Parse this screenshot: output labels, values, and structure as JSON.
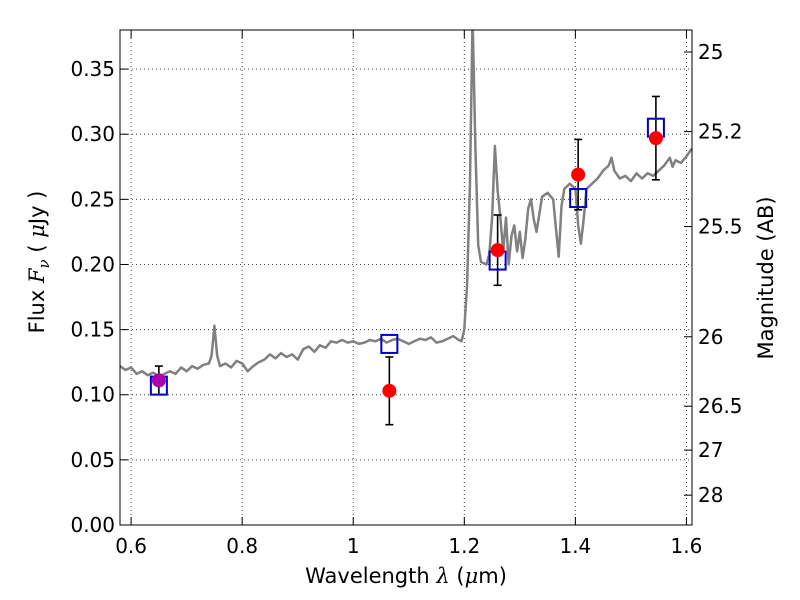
{
  "chart_data": {
    "type": "scatter",
    "title": "",
    "xlabel": "Wavelength",
    "xlabel_symbol": "λ",
    "xlabel_unit_prefix": "(",
    "xlabel_unit_mu": "μ",
    "xlabel_unit_rest": "m)",
    "ylabel": "Flux",
    "ylabel_symbol": "F",
    "ylabel_subscript": "ν",
    "ylabel_unit_prefix": "(",
    "ylabel_unit_mu": "μ",
    "ylabel_unit_rest": "Jy )",
    "y2label": "Magnitude (AB)",
    "xlim": [
      0.58,
      1.61
    ],
    "ylim": [
      0.0,
      0.38
    ],
    "grid": true,
    "x_ticks": [
      {
        "value": 0.6,
        "label": "0.6"
      },
      {
        "value": 0.8,
        "label": "0.8"
      },
      {
        "value": 1.0,
        "label": "1"
      },
      {
        "value": 1.2,
        "label": "1.2"
      },
      {
        "value": 1.4,
        "label": "1.4"
      },
      {
        "value": 1.6,
        "label": "1.6"
      }
    ],
    "y_ticks": [
      {
        "value": 0.0,
        "label": "0.00"
      },
      {
        "value": 0.05,
        "label": "0.05"
      },
      {
        "value": 0.1,
        "label": "0.10"
      },
      {
        "value": 0.15,
        "label": "0.15"
      },
      {
        "value": 0.2,
        "label": "0.20"
      },
      {
        "value": 0.25,
        "label": "0.25"
      },
      {
        "value": 0.3,
        "label": "0.30"
      },
      {
        "value": 0.35,
        "label": "0.35"
      }
    ],
    "y2_ticks": [
      {
        "flux": 0.3631,
        "label": "25"
      },
      {
        "flux": 0.302,
        "label": "25.2"
      },
      {
        "flux": 0.2291,
        "label": "25.5"
      },
      {
        "flux": 0.1445,
        "label": "26"
      },
      {
        "flux": 0.0912,
        "label": "26.5"
      },
      {
        "flux": 0.0575,
        "label": "27"
      },
      {
        "flux": 0.0229,
        "label": "28"
      }
    ],
    "series": [
      {
        "name": "model_spectrum",
        "kind": "line",
        "color": "#808080",
        "points": [
          [
            0.58,
            0.122
          ],
          [
            0.59,
            0.119
          ],
          [
            0.6,
            0.121
          ],
          [
            0.61,
            0.116
          ],
          [
            0.62,
            0.118
          ],
          [
            0.63,
            0.115
          ],
          [
            0.64,
            0.117
          ],
          [
            0.65,
            0.114
          ],
          [
            0.66,
            0.116
          ],
          [
            0.67,
            0.118
          ],
          [
            0.68,
            0.116
          ],
          [
            0.69,
            0.121
          ],
          [
            0.7,
            0.118
          ],
          [
            0.71,
            0.122
          ],
          [
            0.72,
            0.12
          ],
          [
            0.73,
            0.123
          ],
          [
            0.74,
            0.124
          ],
          [
            0.745,
            0.13
          ],
          [
            0.75,
            0.153
          ],
          [
            0.755,
            0.13
          ],
          [
            0.76,
            0.122
          ],
          [
            0.77,
            0.124
          ],
          [
            0.78,
            0.121
          ],
          [
            0.79,
            0.126
          ],
          [
            0.8,
            0.124
          ],
          [
            0.81,
            0.118
          ],
          [
            0.82,
            0.122
          ],
          [
            0.83,
            0.125
          ],
          [
            0.84,
            0.127
          ],
          [
            0.85,
            0.131
          ],
          [
            0.86,
            0.128
          ],
          [
            0.87,
            0.132
          ],
          [
            0.88,
            0.129
          ],
          [
            0.89,
            0.131
          ],
          [
            0.9,
            0.127
          ],
          [
            0.91,
            0.135
          ],
          [
            0.92,
            0.137
          ],
          [
            0.93,
            0.133
          ],
          [
            0.94,
            0.138
          ],
          [
            0.95,
            0.136
          ],
          [
            0.96,
            0.141
          ],
          [
            0.97,
            0.14
          ],
          [
            0.98,
            0.142
          ],
          [
            0.99,
            0.14
          ],
          [
            1.0,
            0.141
          ],
          [
            1.01,
            0.139
          ],
          [
            1.02,
            0.14
          ],
          [
            1.03,
            0.142
          ],
          [
            1.04,
            0.141
          ],
          [
            1.05,
            0.143
          ],
          [
            1.06,
            0.14
          ],
          [
            1.07,
            0.142
          ],
          [
            1.08,
            0.143
          ],
          [
            1.09,
            0.141
          ],
          [
            1.1,
            0.139
          ],
          [
            1.11,
            0.141
          ],
          [
            1.12,
            0.143
          ],
          [
            1.13,
            0.142
          ],
          [
            1.14,
            0.144
          ],
          [
            1.15,
            0.14
          ],
          [
            1.16,
            0.141
          ],
          [
            1.17,
            0.143
          ],
          [
            1.18,
            0.145
          ],
          [
            1.19,
            0.142
          ],
          [
            1.195,
            0.141
          ],
          [
            1.2,
            0.15
          ],
          [
            1.205,
            0.185
          ],
          [
            1.21,
            0.26
          ],
          [
            1.215,
            0.39
          ],
          [
            1.22,
            0.29
          ],
          [
            1.225,
            0.215
          ],
          [
            1.23,
            0.202
          ],
          [
            1.24,
            0.2
          ],
          [
            1.245,
            0.208
          ],
          [
            1.25,
            0.236
          ],
          [
            1.255,
            0.291
          ],
          [
            1.26,
            0.257
          ],
          [
            1.265,
            0.236
          ],
          [
            1.27,
            0.21
          ],
          [
            1.275,
            0.236
          ],
          [
            1.28,
            0.2
          ],
          [
            1.285,
            0.222
          ],
          [
            1.29,
            0.23
          ],
          [
            1.295,
            0.21
          ],
          [
            1.3,
            0.225
          ],
          [
            1.305,
            0.205
          ],
          [
            1.31,
            0.22
          ],
          [
            1.315,
            0.243
          ],
          [
            1.32,
            0.25
          ],
          [
            1.325,
            0.235
          ],
          [
            1.33,
            0.225
          ],
          [
            1.34,
            0.252
          ],
          [
            1.35,
            0.255
          ],
          [
            1.36,
            0.25
          ],
          [
            1.365,
            0.228
          ],
          [
            1.37,
            0.206
          ],
          [
            1.375,
            0.245
          ],
          [
            1.38,
            0.258
          ],
          [
            1.39,
            0.262
          ],
          [
            1.4,
            0.258
          ],
          [
            1.405,
            0.23
          ],
          [
            1.41,
            0.216
          ],
          [
            1.415,
            0.235
          ],
          [
            1.42,
            0.258
          ],
          [
            1.43,
            0.262
          ],
          [
            1.44,
            0.266
          ],
          [
            1.45,
            0.272
          ],
          [
            1.46,
            0.276
          ],
          [
            1.465,
            0.282
          ],
          [
            1.47,
            0.272
          ],
          [
            1.48,
            0.266
          ],
          [
            1.49,
            0.268
          ],
          [
            1.5,
            0.264
          ],
          [
            1.51,
            0.27
          ],
          [
            1.52,
            0.266
          ],
          [
            1.53,
            0.27
          ],
          [
            1.54,
            0.268
          ],
          [
            1.55,
            0.272
          ],
          [
            1.56,
            0.276
          ],
          [
            1.57,
            0.282
          ],
          [
            1.575,
            0.275
          ],
          [
            1.58,
            0.28
          ],
          [
            1.59,
            0.278
          ],
          [
            1.6,
            0.283
          ],
          [
            1.61,
            0.289
          ]
        ]
      },
      {
        "name": "model_photometry",
        "kind": "square",
        "color": "#0000cc",
        "points": [
          [
            0.65,
            0.107
          ],
          [
            1.065,
            0.139
          ],
          [
            1.26,
            0.203
          ],
          [
            1.405,
            0.251
          ],
          [
            1.545,
            0.305
          ]
        ]
      },
      {
        "name": "observed_photometry",
        "kind": "circle",
        "color": "#ff0000",
        "overlap_color": "#aa00aa",
        "points": [
          {
            "x": 0.65,
            "y": 0.111,
            "err": 0.011
          },
          {
            "x": 1.065,
            "y": 0.103,
            "err": 0.026
          },
          {
            "x": 1.26,
            "y": 0.211,
            "err": 0.027
          },
          {
            "x": 1.405,
            "y": 0.269,
            "err": 0.027
          },
          {
            "x": 1.545,
            "y": 0.297,
            "err": 0.032
          }
        ]
      }
    ]
  }
}
